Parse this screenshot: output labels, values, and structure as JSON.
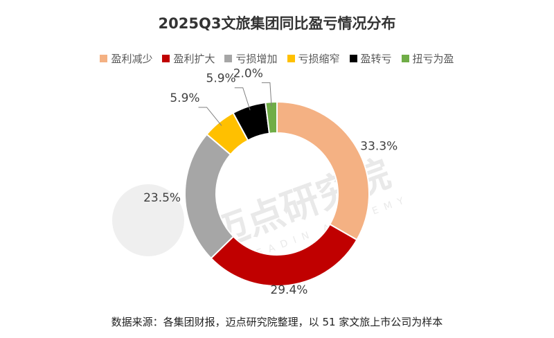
{
  "chart_data": {
    "type": "pie",
    "variant": "donut",
    "title": "2025Q3文旅集团同比盈亏情况分布",
    "legend_position": "top",
    "categories": [
      "盈利减少",
      "盈利扩大",
      "亏损增加",
      "亏损缩窄",
      "盈转亏",
      "扭亏为盈"
    ],
    "values": [
      33.3,
      29.4,
      23.5,
      5.9,
      5.9,
      2.0
    ],
    "value_labels": [
      "33.3%",
      "29.4%",
      "23.5%",
      "5.9%",
      "5.9%",
      "2.0%"
    ],
    "colors": [
      "#F4B183",
      "#C00000",
      "#A6A6A6",
      "#FFC000",
      "#000000",
      "#70AD47"
    ]
  },
  "watermark": {
    "text": "迈点研究院",
    "subtext": "MEADIN ACADEMY"
  },
  "source_note": "数据来源：各集团财报，迈点研究院整理，以 51 家文旅上市公司为样本"
}
